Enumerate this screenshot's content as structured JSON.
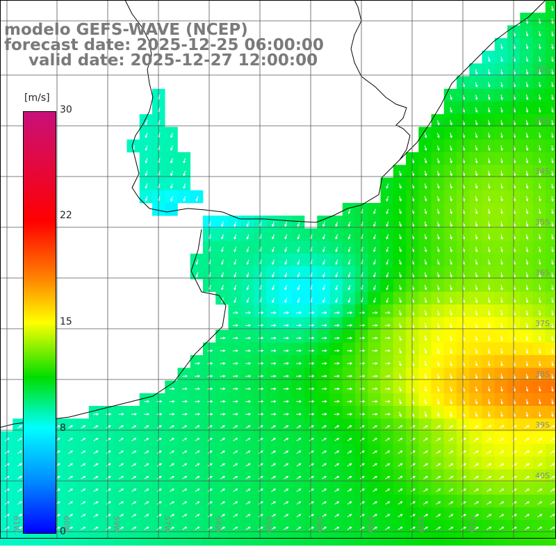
{
  "title": {
    "line1": "modelo GEFS-WAVE (NCEP)",
    "line2": "forecast date: 2025-12-25 06:00:00",
    "line3": "valid date: 2025-12-27 12:00:00"
  },
  "colorbar": {
    "unit": "[m/s]",
    "ticks": [
      "30",
      "22",
      "15",
      "8",
      "0"
    ],
    "colors": [
      "#c8107a",
      "#ff0000",
      "#ff8800",
      "#ffff00",
      "#00dd00",
      "#00ffff",
      "#0088ff",
      "#0000ff"
    ]
  },
  "map": {
    "lat_labels": [
      "32S",
      "33S",
      "34S",
      "35S",
      "36S",
      "37S",
      "38S",
      "39S",
      "40S"
    ],
    "lon_labels": [
      "61W",
      "60W",
      "59W",
      "57W",
      "56W",
      "55W",
      "54W",
      "53W",
      "52W",
      "51W"
    ],
    "colors": {
      "land": "#ffffff",
      "coast": "#000000",
      "grid": "#555555",
      "arrow": "#ffffff"
    }
  }
}
